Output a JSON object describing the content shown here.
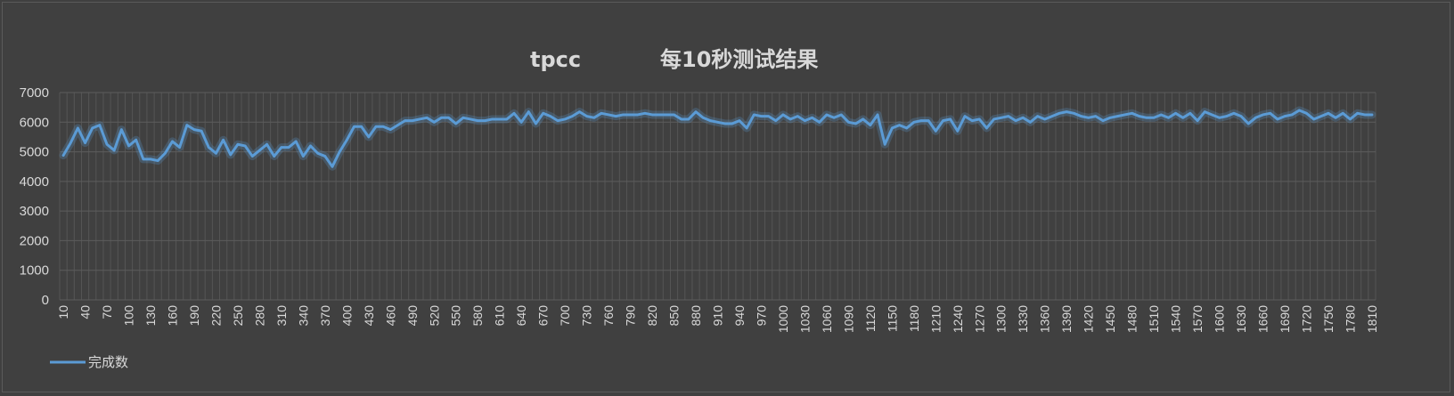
{
  "chart_data": {
    "type": "line",
    "title_part1": "tpcc",
    "title_part2": "每10秒测试结果",
    "xlabel": "",
    "ylabel": "",
    "ylim": [
      0,
      7000
    ],
    "yticks": [
      0,
      1000,
      2000,
      3000,
      4000,
      5000,
      6000,
      7000
    ],
    "x_start": 10,
    "x_step": 10,
    "x_label_every": 3,
    "grid": true,
    "legend_position": "bottom-left",
    "line_color": "#5b9bd5",
    "series": [
      {
        "name": "完成数",
        "values": [
          4880,
          5300,
          5800,
          5300,
          5800,
          5900,
          5250,
          5050,
          5750,
          5200,
          5400,
          4750,
          4750,
          4700,
          4950,
          5350,
          5150,
          5900,
          5750,
          5700,
          5150,
          4950,
          5400,
          4900,
          5250,
          5200,
          4850,
          5050,
          5250,
          4850,
          5150,
          5150,
          5350,
          4850,
          5200,
          4950,
          4850,
          4500,
          5000,
          5400,
          5850,
          5850,
          5500,
          5850,
          5850,
          5750,
          5900,
          6050,
          6050,
          6100,
          6150,
          6000,
          6150,
          6150,
          5950,
          6150,
          6100,
          6050,
          6050,
          6100,
          6100,
          6100,
          6300,
          6000,
          6350,
          5950,
          6300,
          6200,
          6050,
          6100,
          6200,
          6350,
          6200,
          6150,
          6300,
          6250,
          6200,
          6250,
          6250,
          6250,
          6300,
          6250,
          6250,
          6250,
          6250,
          6100,
          6100,
          6350,
          6150,
          6050,
          6000,
          5950,
          5950,
          6050,
          5800,
          6250,
          6200,
          6200,
          6050,
          6250,
          6100,
          6200,
          6050,
          6150,
          6000,
          6250,
          6150,
          6250,
          6000,
          5950,
          6100,
          5900,
          6250,
          5250,
          5800,
          5900,
          5800,
          6000,
          6050,
          6050,
          5700,
          6050,
          6100,
          5700,
          6200,
          6050,
          6100,
          5800,
          6100,
          6150,
          6200,
          6050,
          6150,
          6000,
          6200,
          6100,
          6200,
          6300,
          6350,
          6300,
          6200,
          6150,
          6200,
          6050,
          6150,
          6200,
          6250,
          6300,
          6200,
          6150,
          6150,
          6250,
          6150,
          6300,
          6150,
          6300,
          6050,
          6350,
          6250,
          6150,
          6200,
          6300,
          6200,
          5950,
          6150,
          6250,
          6300,
          6100,
          6200,
          6250,
          6400,
          6300,
          6100,
          6200,
          6300,
          6150,
          6300,
          6100,
          6300,
          6250,
          6250
        ]
      }
    ]
  }
}
